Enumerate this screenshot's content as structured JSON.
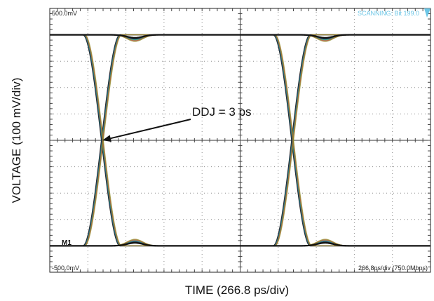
{
  "chart_data": {
    "type": "line",
    "title": "",
    "xlabel": "TIME (266.8 ps/div)",
    "ylabel": "VOLTAGE (100 mV/div)",
    "x_divisions": 10,
    "y_divisions": 10,
    "x_scale": "266.8 ps/div",
    "y_scale": "100 mV/div",
    "xlim_ps": [
      0,
      2668
    ],
    "ylim_mv": [
      -500,
      500
    ],
    "grid": true,
    "labels": {
      "top_left": "500.0mV",
      "bottom_left": "-500.0mV",
      "bottom_right": "266.8ps/div (750.0Mbps)",
      "top_right": "SCANNING: Bit 199.0",
      "marker": "M1"
    },
    "annotation": {
      "text": "DDJ = 3 ps",
      "points_to_ps": 369,
      "points_to_mv": 0
    },
    "eye": {
      "high_level_mv": 400,
      "low_level_mv": -400,
      "transition_width_ps": 260,
      "crossing_times_ps": [
        369,
        1702
      ],
      "ddj_ps": 3,
      "overshoot_mv": 25,
      "bump_times_ps": [
        597,
        1930
      ]
    },
    "series_colors": [
      "#1a1a1a",
      "#1e66b0",
      "#2fa84f",
      "#c93333",
      "#8e8e2a"
    ]
  }
}
